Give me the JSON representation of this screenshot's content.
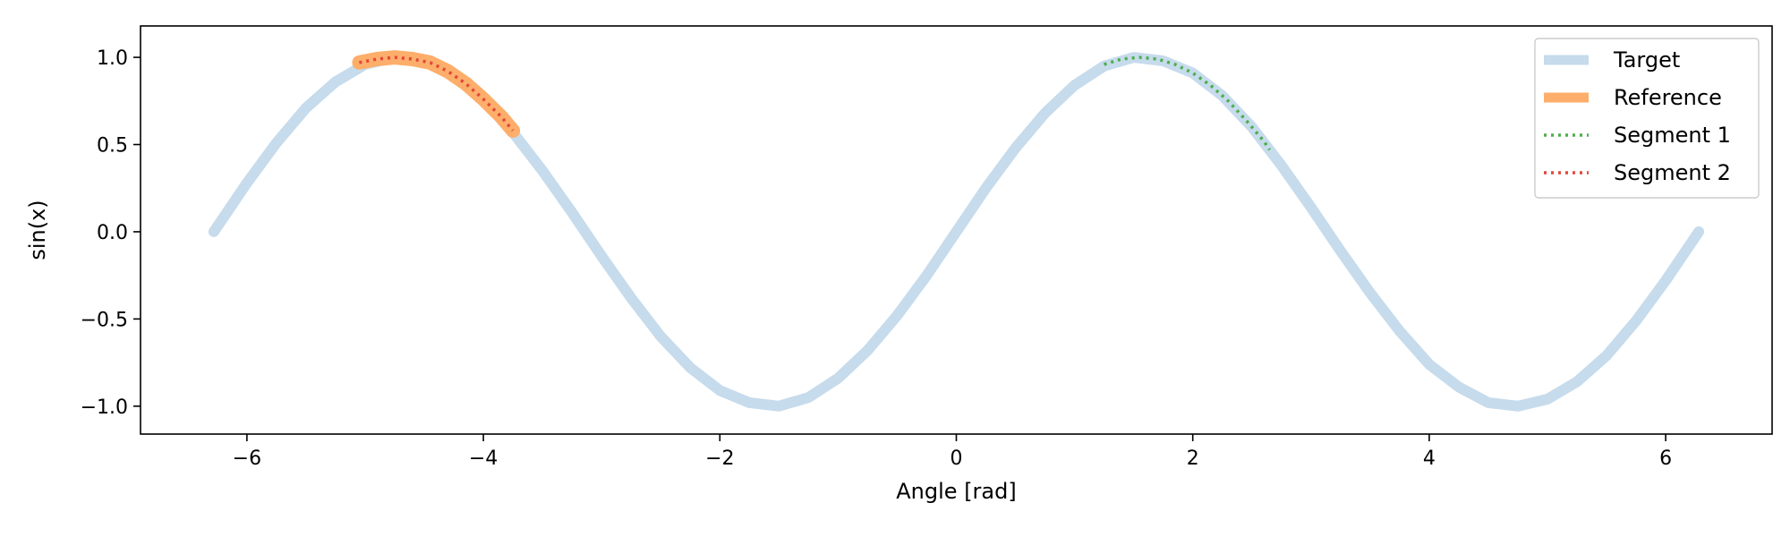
{
  "chart_data": {
    "type": "line",
    "title": "",
    "xlabel": "Angle [rad]",
    "ylabel": "sin(x)",
    "xlim": [
      -6.9,
      6.9
    ],
    "ylim": [
      -1.16,
      1.18
    ],
    "xticks": [
      -6,
      -4,
      -2,
      0,
      2,
      4,
      6
    ],
    "xtick_labels": [
      "−6",
      "−4",
      "−2",
      "0",
      "2",
      "4",
      "6"
    ],
    "yticks": [
      -1.0,
      -0.5,
      0.0,
      0.5,
      1.0
    ],
    "ytick_labels": [
      "−1.0",
      "−0.5",
      "0.0",
      "0.5",
      "1.0"
    ],
    "grid": false,
    "legend_position": "upper right",
    "series": [
      {
        "name": "Target",
        "color": "#c6dbec",
        "style": "solid-thick",
        "x": [
          -6.28,
          -6.0,
          -5.75,
          -5.5,
          -5.25,
          -5.0,
          -4.75,
          -4.5,
          -4.25,
          -4.0,
          -3.75,
          -3.5,
          -3.25,
          -3.0,
          -2.75,
          -2.5,
          -2.25,
          -2.0,
          -1.75,
          -1.5,
          -1.25,
          -1.0,
          -0.75,
          -0.5,
          -0.25,
          0.0,
          0.25,
          0.5,
          0.75,
          1.0,
          1.25,
          1.5,
          1.75,
          2.0,
          2.25,
          2.5,
          2.75,
          3.0,
          3.25,
          3.5,
          3.75,
          4.0,
          4.25,
          4.5,
          4.75,
          5.0,
          5.25,
          5.5,
          5.75,
          6.0,
          6.28
        ],
        "y": [
          0.0,
          0.28,
          0.51,
          0.71,
          0.86,
          0.96,
          1.0,
          0.98,
          0.89,
          0.76,
          0.57,
          0.35,
          0.11,
          -0.14,
          -0.38,
          -0.6,
          -0.78,
          -0.91,
          -0.98,
          -1.0,
          -0.95,
          -0.84,
          -0.68,
          -0.48,
          -0.25,
          0.0,
          0.25,
          0.48,
          0.68,
          0.84,
          0.95,
          1.0,
          0.98,
          0.91,
          0.78,
          0.6,
          0.38,
          0.14,
          -0.11,
          -0.35,
          -0.57,
          -0.76,
          -0.89,
          -0.98,
          -1.0,
          -0.96,
          -0.86,
          -0.71,
          -0.51,
          -0.28,
          0.0
        ]
      },
      {
        "name": "Reference",
        "color": "#fdae6b",
        "style": "solid-thick",
        "x": [
          -5.05,
          -4.9,
          -4.75,
          -4.6,
          -4.45,
          -4.3,
          -4.15,
          -4.0,
          -3.85,
          -3.75
        ],
        "y": [
          0.97,
          0.99,
          1.0,
          0.99,
          0.97,
          0.92,
          0.85,
          0.76,
          0.66,
          0.58
        ]
      },
      {
        "name": "Segment 1",
        "color": "#4daf4a",
        "style": "dotted",
        "x": [
          1.25,
          1.4,
          1.55,
          1.7,
          1.85,
          2.0,
          2.15,
          2.3,
          2.45,
          2.6,
          2.65
        ],
        "y": [
          0.96,
          0.99,
          1.0,
          0.99,
          0.96,
          0.91,
          0.84,
          0.75,
          0.64,
          0.52,
          0.47
        ]
      },
      {
        "name": "Segment 2",
        "color": "#e0483a",
        "style": "dotted",
        "x": [
          -5.05,
          -4.9,
          -4.75,
          -4.6,
          -4.45,
          -4.3,
          -4.15,
          -4.0,
          -3.85,
          -3.75
        ],
        "y": [
          0.97,
          0.99,
          1.0,
          0.99,
          0.97,
          0.92,
          0.85,
          0.76,
          0.66,
          0.58
        ]
      }
    ]
  }
}
